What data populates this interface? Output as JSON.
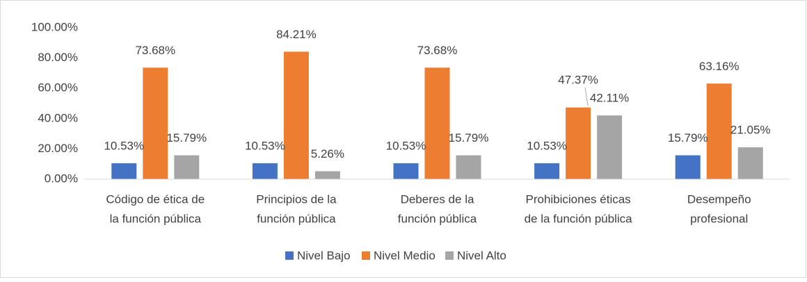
{
  "chart_data": {
    "type": "bar",
    "categories": [
      [
        "Código de ética de",
        "la función pública"
      ],
      [
        "Principios de la",
        "función pública"
      ],
      [
        "Deberes de la",
        "función pública"
      ],
      [
        "Prohibiciones éticas",
        "de la función pública"
      ],
      [
        "Desempeño",
        "profesional"
      ]
    ],
    "series": [
      {
        "name": "Nivel Bajo",
        "color": "#4472c4",
        "values": [
          10.53,
          10.53,
          10.53,
          10.53,
          15.79
        ],
        "value_labels": [
          "10.53%",
          "10.53%",
          "10.53%",
          "10.53%",
          "15.79%"
        ]
      },
      {
        "name": "Nivel Medio",
        "color": "#ed7d31",
        "values": [
          73.68,
          84.21,
          73.68,
          47.37,
          63.16
        ],
        "value_labels": [
          "73.68%",
          "84.21%",
          "73.68%",
          "47.37%",
          "63.16%"
        ]
      },
      {
        "name": "Nivel Alto",
        "color": "#a5a5a5",
        "values": [
          15.79,
          5.26,
          15.79,
          42.11,
          21.05
        ],
        "value_labels": [
          "15.79%",
          "5.26%",
          "15.79%",
          "42.11%",
          "21.05%"
        ]
      }
    ],
    "ylim": [
      0,
      100
    ],
    "yticks": [
      {
        "value": 0,
        "label": "0.00%"
      },
      {
        "value": 20,
        "label": "20.00%"
      },
      {
        "value": 40,
        "label": "40.00%"
      },
      {
        "value": 60,
        "label": "60.00%"
      },
      {
        "value": 80,
        "label": "80.00%"
      },
      {
        "value": 100,
        "label": "100.00%"
      }
    ],
    "grid": false,
    "legend": "bottom"
  }
}
